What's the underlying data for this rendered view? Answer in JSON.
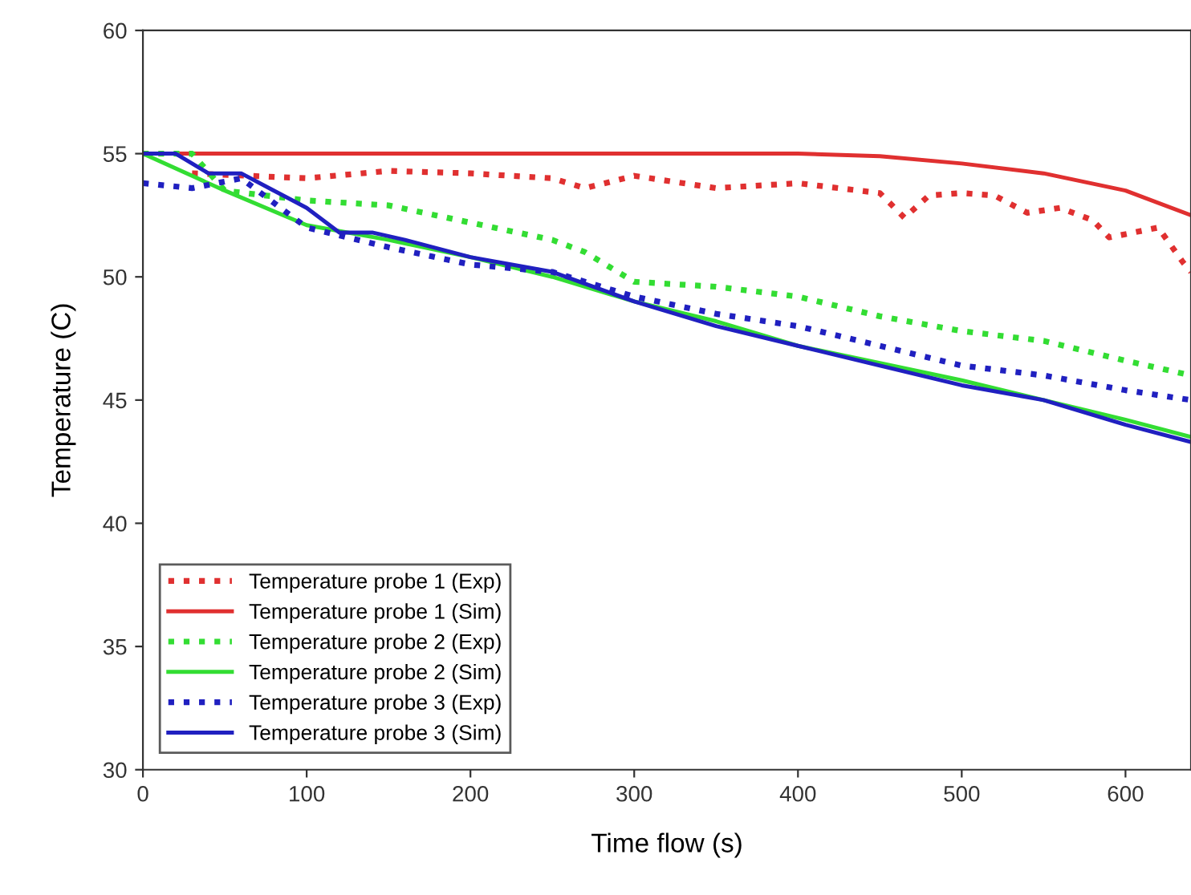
{
  "chart_data": {
    "type": "line",
    "xlabel": "Time flow (s)",
    "ylabel": "Temperature (C)",
    "xlim": [
      0,
      640
    ],
    "xticks": [
      0,
      100,
      200,
      300,
      400,
      500,
      600
    ],
    "ylim": [
      30,
      60
    ],
    "yticks": [
      30,
      35,
      40,
      45,
      50,
      55,
      60
    ],
    "grid": false,
    "legend": "bottom left",
    "marker": "none",
    "series": [
      {
        "name": "Temperature probe 1 (Exp)",
        "color": "#e03030",
        "line_style": "dotted",
        "x": [
          30,
          100,
          150,
          200,
          250,
          270,
          300,
          350,
          400,
          450,
          465,
          480,
          500,
          520,
          540,
          560,
          580,
          590,
          605,
          620,
          635,
          640
        ],
        "values": [
          54.2,
          54.0,
          54.3,
          54.2,
          54.0,
          53.6,
          54.1,
          53.6,
          53.8,
          53.4,
          52.4,
          53.3,
          53.4,
          53.3,
          52.6,
          52.8,
          52.3,
          51.6,
          51.8,
          52.0,
          50.6,
          50.2
        ]
      },
      {
        "name": "Temperature probe 1 (Sim)",
        "color": "#e03030",
        "line_style": "solid",
        "x": [
          0,
          100,
          200,
          300,
          400,
          450,
          500,
          550,
          600,
          640
        ],
        "values": [
          55,
          55,
          55,
          55,
          55,
          54.9,
          54.6,
          54.2,
          53.5,
          52.5
        ]
      },
      {
        "name": "Temperature probe 2 (Exp)",
        "color": "#33dd33",
        "line_style": "dotted",
        "x": [
          0,
          30,
          50,
          100,
          150,
          200,
          250,
          270,
          300,
          350,
          400,
          450,
          500,
          550,
          600,
          640
        ],
        "values": [
          55,
          55,
          53.5,
          53.1,
          52.9,
          52.2,
          51.5,
          51.0,
          49.8,
          49.6,
          49.2,
          48.4,
          47.8,
          47.4,
          46.6,
          46.0
        ]
      },
      {
        "name": "Temperature probe 2 (Sim)",
        "color": "#33dd33",
        "line_style": "solid",
        "x": [
          0,
          50,
          100,
          150,
          200,
          250,
          300,
          350,
          400,
          450,
          500,
          550,
          600,
          640
        ],
        "values": [
          55,
          53.5,
          52.1,
          51.5,
          50.8,
          50.0,
          49.0,
          48.2,
          47.2,
          46.5,
          45.8,
          45.0,
          44.2,
          43.5
        ]
      },
      {
        "name": "Temperature probe 3 (Exp)",
        "color": "#2020c0",
        "line_style": "dotted",
        "x": [
          0,
          30,
          60,
          100,
          150,
          200,
          250,
          300,
          350,
          400,
          450,
          500,
          550,
          600,
          640
        ],
        "values": [
          53.8,
          53.6,
          54.0,
          52.0,
          51.2,
          50.5,
          50.2,
          49.2,
          48.5,
          48.0,
          47.2,
          46.4,
          46.0,
          45.4,
          45.0
        ]
      },
      {
        "name": "Temperature probe 3 (Sim)",
        "color": "#2020c0",
        "line_style": "solid",
        "x": [
          0,
          20,
          40,
          60,
          80,
          100,
          120,
          140,
          160,
          200,
          250,
          300,
          350,
          400,
          450,
          500,
          550,
          600,
          640
        ],
        "values": [
          55,
          55,
          54.2,
          54.2,
          53.5,
          52.8,
          51.8,
          51.8,
          51.5,
          50.8,
          50.2,
          49.0,
          48.0,
          47.2,
          46.4,
          45.6,
          45.0,
          44.0,
          43.3
        ]
      }
    ]
  }
}
